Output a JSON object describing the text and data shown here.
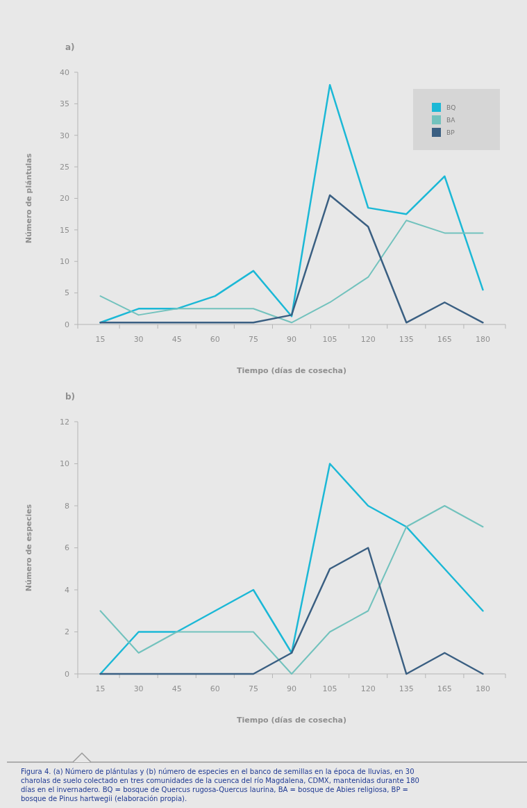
{
  "chart_data": [
    {
      "type": "line",
      "title": "a)",
      "xlabel": "Tiempo (días de cosecha)",
      "ylabel": "Número de plántulas",
      "categories": [
        "15",
        "30",
        "45",
        "60",
        "75",
        "90",
        "105",
        "120",
        "135",
        "165",
        "180"
      ],
      "ylim": [
        0,
        40
      ],
      "yticks": [
        0,
        5,
        10,
        15,
        20,
        25,
        30,
        35,
        40
      ],
      "legend": "top right",
      "grid": false,
      "marker": "none",
      "line_style": "solid",
      "series": [
        {
          "name": "BQ",
          "color": "#1bb8d6",
          "values": [
            0.3,
            2.5,
            2.5,
            4.5,
            8.5,
            1.3,
            38,
            18.5,
            17.5,
            23.5,
            5.5
          ]
        },
        {
          "name": "BA",
          "color": "#72c2bd",
          "values": [
            4.5,
            1.5,
            2.5,
            2.5,
            2.5,
            0.3,
            3.5,
            7.5,
            16.5,
            14.5,
            14.5
          ]
        },
        {
          "name": "BP",
          "color": "#3a5f82",
          "values": [
            0.3,
            0.3,
            0.3,
            0.3,
            0.3,
            1.5,
            20.5,
            15.5,
            0.3,
            3.5,
            0.3
          ]
        }
      ]
    },
    {
      "type": "line",
      "title": "b)",
      "xlabel": "Tiempo (días de cosecha)",
      "ylabel": "Número de especies",
      "categories": [
        "15",
        "30",
        "45",
        "60",
        "75",
        "90",
        "105",
        "120",
        "135",
        "165",
        "180"
      ],
      "ylim": [
        0,
        12
      ],
      "yticks": [
        0,
        2,
        4,
        6,
        8,
        10,
        12
      ],
      "legend": false,
      "grid": false,
      "marker": "none",
      "line_style": "solid",
      "annotations": [
        "Figura 4. (a) Número de plántulas y (b) número de especies en el banco de semillas en la época de lluvias, en 30 charolas de suelo colectado en tres comunidades de la cuenca del río Magdalena, CDMX, mantenidas durante 180 días en el invernadero. BQ = bosque de Quercus rugosa-Quercus laurina, BA = bosque de Abies religiosa, BP = bosque de Pinus hartwegii (elaboración propia)."
      ],
      "series": [
        {
          "color": "#1bb8d6",
          "values": [
            0,
            2,
            2,
            3,
            4,
            1,
            10,
            8,
            7,
            5,
            3
          ]
        },
        {
          "color": "#72c2bd",
          "values": [
            3,
            1,
            2,
            2,
            2,
            0,
            2,
            3,
            7,
            8,
            7
          ]
        },
        {
          "color": "#3a5f82",
          "values": [
            0,
            0,
            0,
            0,
            0,
            1,
            5,
            6,
            0,
            1,
            0
          ]
        }
      ]
    }
  ]
}
